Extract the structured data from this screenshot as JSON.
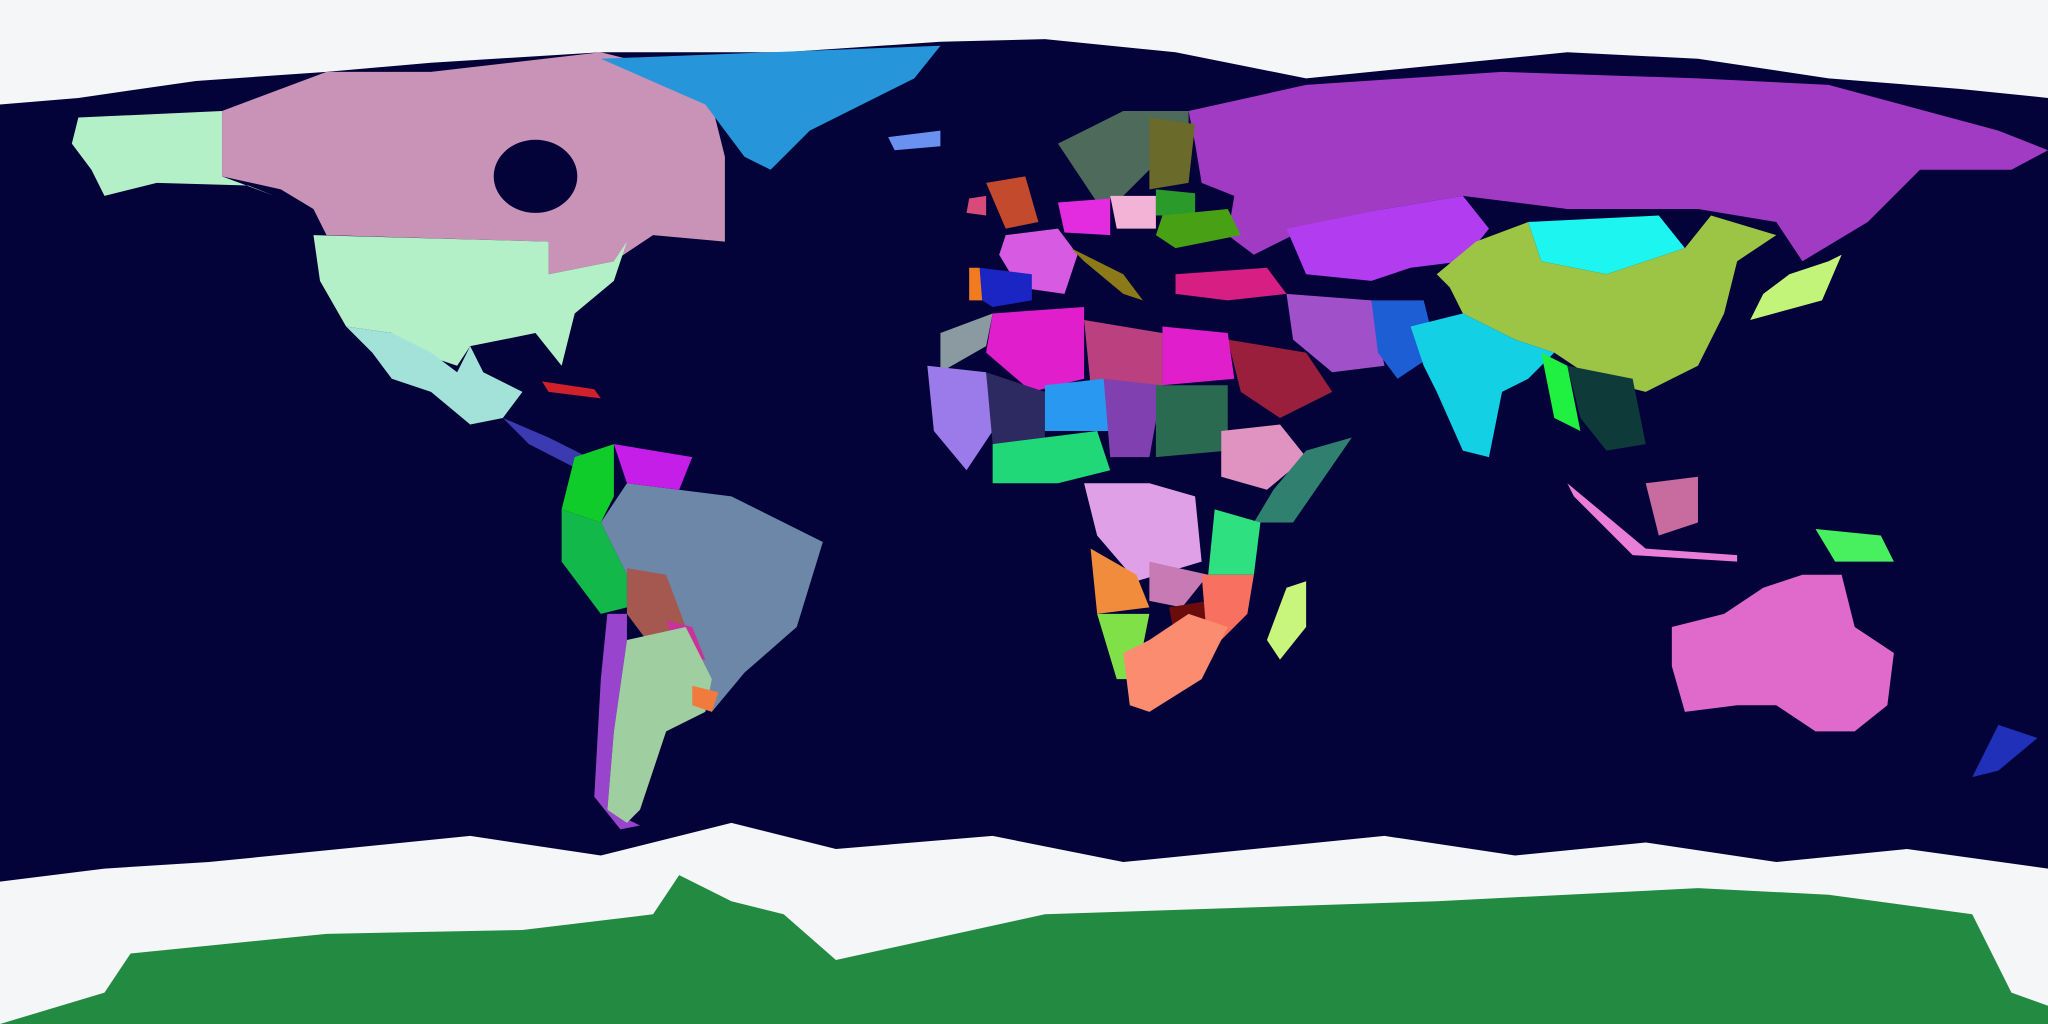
{
  "map": {
    "projection": "equirectangular",
    "colors": {
      "ocean": "#03033a",
      "ice": "#f4f6f8",
      "antarctica": "#238a42",
      "alaska": "#b3f0c8",
      "canada": "#c993b8",
      "greenland": "#2795da",
      "iceland": "#6a90f0",
      "usa": "#b3f0c8",
      "mexico": "#a3e2d8",
      "central_america": "#3b3ab0",
      "cuba": "#d0202c",
      "colombia": "#10cc2a",
      "venezuela": "#c41ee8",
      "peru": "#13b84a",
      "brazil": "#6c87a8",
      "bolivia": "#a55850",
      "paraguay": "#c8339a",
      "argentina": "#9fcea0",
      "chile": "#9944cc",
      "uruguay": "#f07b3c",
      "scandinavia": "#4d6a5a",
      "finland": "#6a6a2a",
      "uk": "#c34a2c",
      "ireland": "#d84a7a",
      "france": "#d75ae2",
      "spain": "#1b25c3",
      "portugal": "#f07b20",
      "germany": "#e32be0",
      "poland": "#f3b3d6",
      "belarus": "#2a9a2a",
      "ukraine": "#48a015",
      "italy": "#8c7a18",
      "turkey": "#d61e83",
      "russia": "#a13bc4",
      "kazakhstan": "#b23cf0",
      "mongolia": "#1cf5f0",
      "china": "#9dc545",
      "india": "#14d0e4",
      "iran": "#a050c8",
      "saudi_arabia": "#9a1f3c",
      "pakistan": "#1d5ed4",
      "myanmar": "#20f040",
      "indochina": "#0f3a3a",
      "japan": "#c3f47a",
      "indonesia": "#e87ed8",
      "borneo": "#c86ca0",
      "papua": "#48f060",
      "australia": "#e06acc",
      "new_zealand": "#2030b8",
      "morocco": "#8a9aa0",
      "algeria": "#e11ecc",
      "libya": "#bb4080",
      "egypt": "#e11ecc",
      "west_africa": "#9b7aea",
      "mali": "#2c2a60",
      "niger": "#2898f0",
      "chad": "#8040b0",
      "sudan": "#2a6a50",
      "ethiopia": "#e092c0",
      "somalia": "#308070",
      "nigeria": "#20d878",
      "drc": "#e0a0e8",
      "kenya": "#2ee080",
      "angola": "#f08c3c",
      "zambia": "#c87ab4",
      "zimbabwe": "#6a0c0c",
      "mozambique": "#f87060",
      "namibia": "#80e048",
      "south_africa": "#fc8c70",
      "madagascar": "#c8f57c"
    }
  }
}
